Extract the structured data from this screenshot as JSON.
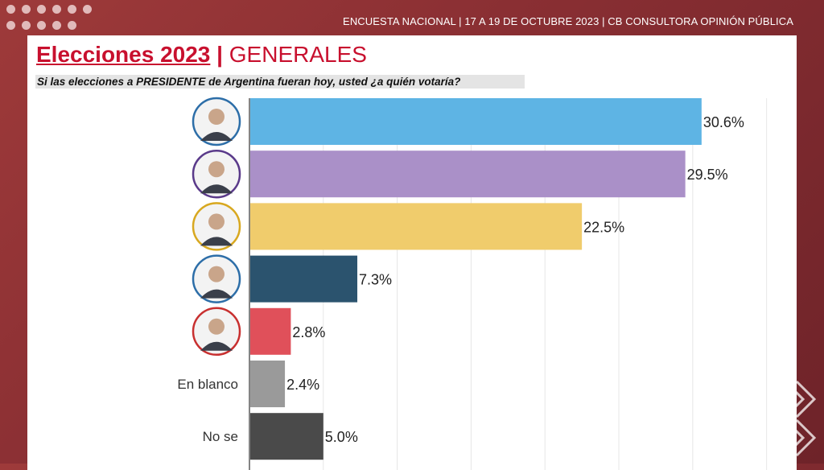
{
  "header": {
    "meta": "ENCUESTA NACIONAL | 17 A 19 DE OCTUBRE 2023 | CB CONSULTORA OPINIÓN PÚBLICA"
  },
  "title": {
    "main": "Elecciones 2023",
    "separator": "|",
    "sub": "GENERALES"
  },
  "question": "Si las elecciones a PRESIDENTE de Argentina fueran hoy, usted ¿a quién votaría?",
  "chart_data": {
    "type": "bar",
    "orientation": "horizontal",
    "categories": [
      "candidate-1",
      "candidate-2",
      "candidate-3",
      "candidate-4",
      "candidate-5",
      "En blanco",
      "No se"
    ],
    "category_labels": [
      "",
      "",
      "",
      "",
      "",
      "En blanco",
      "No se"
    ],
    "values": [
      30.6,
      29.5,
      22.5,
      7.3,
      2.8,
      2.4,
      5.0
    ],
    "value_labels": [
      "30.6%",
      "29.5%",
      "22.5%",
      "7.3%",
      "2.8%",
      "2.4%",
      "5.0%"
    ],
    "colors": [
      "#5eb4e4",
      "#aa90c8",
      "#f0cc6c",
      "#2b536e",
      "#e0505a",
      "#9a9a9a",
      "#4a4a4a"
    ],
    "avatar_ring_colors": [
      "#2d6ea8",
      "#5a3a8a",
      "#d8a820",
      "#2d6ea8",
      "#c83030"
    ],
    "xlim": [
      0,
      36
    ],
    "grid": true
  }
}
